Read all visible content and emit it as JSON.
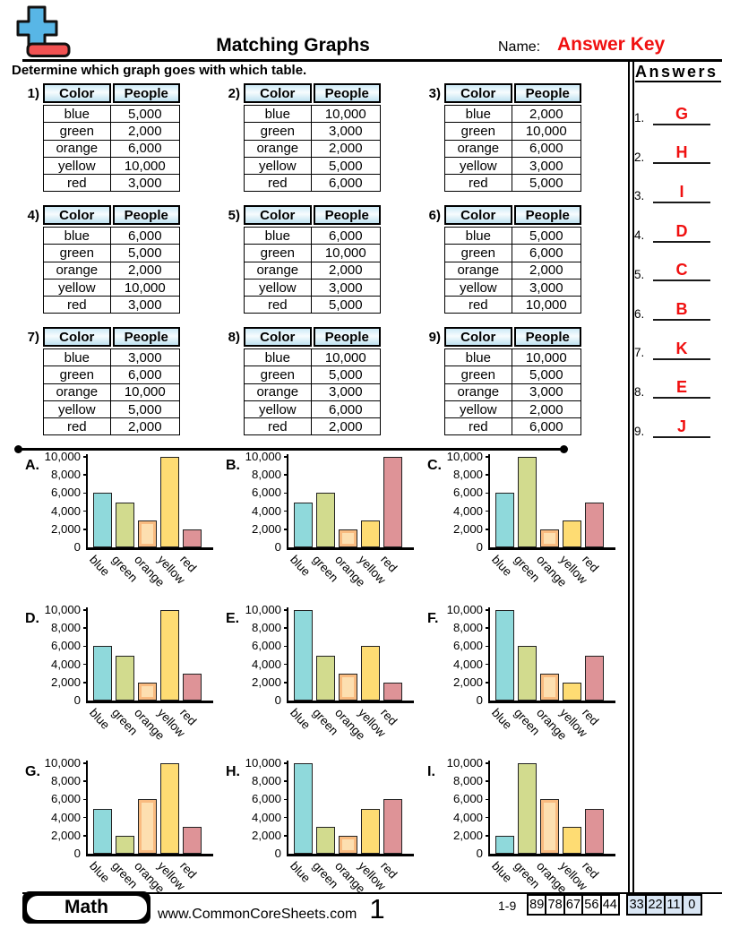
{
  "header": {
    "title": "Matching Graphs",
    "name_label": "Name:",
    "answer_key": "Answer Key",
    "accent_red": "#f01010"
  },
  "instruction": "Determine which graph goes with which table.",
  "tables": {
    "columns": [
      "Color",
      "People"
    ],
    "items": [
      {
        "num": "1)",
        "rows": [
          [
            "blue",
            "5,000"
          ],
          [
            "green",
            "2,000"
          ],
          [
            "orange",
            "6,000"
          ],
          [
            "yellow",
            "10,000"
          ],
          [
            "red",
            "3,000"
          ]
        ]
      },
      {
        "num": "2)",
        "rows": [
          [
            "blue",
            "10,000"
          ],
          [
            "green",
            "3,000"
          ],
          [
            "orange",
            "2,000"
          ],
          [
            "yellow",
            "5,000"
          ],
          [
            "red",
            "6,000"
          ]
        ]
      },
      {
        "num": "3)",
        "rows": [
          [
            "blue",
            "2,000"
          ],
          [
            "green",
            "10,000"
          ],
          [
            "orange",
            "6,000"
          ],
          [
            "yellow",
            "3,000"
          ],
          [
            "red",
            "5,000"
          ]
        ]
      },
      {
        "num": "4)",
        "rows": [
          [
            "blue",
            "6,000"
          ],
          [
            "green",
            "5,000"
          ],
          [
            "orange",
            "2,000"
          ],
          [
            "yellow",
            "10,000"
          ],
          [
            "red",
            "3,000"
          ]
        ]
      },
      {
        "num": "5)",
        "rows": [
          [
            "blue",
            "6,000"
          ],
          [
            "green",
            "10,000"
          ],
          [
            "orange",
            "2,000"
          ],
          [
            "yellow",
            "3,000"
          ],
          [
            "red",
            "5,000"
          ]
        ]
      },
      {
        "num": "6)",
        "rows": [
          [
            "blue",
            "5,000"
          ],
          [
            "green",
            "6,000"
          ],
          [
            "orange",
            "2,000"
          ],
          [
            "yellow",
            "3,000"
          ],
          [
            "red",
            "10,000"
          ]
        ]
      },
      {
        "num": "7)",
        "rows": [
          [
            "blue",
            "3,000"
          ],
          [
            "green",
            "6,000"
          ],
          [
            "orange",
            "10,000"
          ],
          [
            "yellow",
            "5,000"
          ],
          [
            "red",
            "2,000"
          ]
        ]
      },
      {
        "num": "8)",
        "rows": [
          [
            "blue",
            "10,000"
          ],
          [
            "green",
            "5,000"
          ],
          [
            "orange",
            "3,000"
          ],
          [
            "yellow",
            "6,000"
          ],
          [
            "red",
            "2,000"
          ]
        ]
      },
      {
        "num": "9)",
        "rows": [
          [
            "blue",
            "10,000"
          ],
          [
            "green",
            "5,000"
          ],
          [
            "orange",
            "3,000"
          ],
          [
            "yellow",
            "2,000"
          ],
          [
            "red",
            "6,000"
          ]
        ]
      }
    ]
  },
  "answers": {
    "title": "Answers",
    "items": [
      {
        "n": "1.",
        "letter": "G"
      },
      {
        "n": "2.",
        "letter": "H"
      },
      {
        "n": "3.",
        "letter": "I"
      },
      {
        "n": "4.",
        "letter": "D"
      },
      {
        "n": "5.",
        "letter": "C"
      },
      {
        "n": "6.",
        "letter": "B"
      },
      {
        "n": "7.",
        "letter": "K"
      },
      {
        "n": "8.",
        "letter": "E"
      },
      {
        "n": "9.",
        "letter": "J"
      }
    ]
  },
  "chart_data": {
    "type": "bar",
    "categories": [
      "blue",
      "green",
      "orange",
      "yellow",
      "red"
    ],
    "ylim": [
      0,
      10000
    ],
    "ytick_labels": [
      "10,000",
      "8,000",
      "6,000",
      "4,000",
      "2,000",
      "0"
    ],
    "grid": false,
    "bar_colors": {
      "blue": "#8FD9DB",
      "green": "#D2DB8E",
      "orange": "#FDDFB0",
      "orange_ring": "#F9BB80",
      "yellow": "#FEDC73",
      "red": "#DE9397"
    },
    "charts": [
      {
        "label": "A.",
        "values": [
          6000,
          5000,
          3000,
          10000,
          2000
        ]
      },
      {
        "label": "B.",
        "values": [
          5000,
          6000,
          2000,
          3000,
          10000
        ]
      },
      {
        "label": "C.",
        "values": [
          6000,
          10000,
          2000,
          3000,
          5000
        ]
      },
      {
        "label": "D.",
        "values": [
          6000,
          5000,
          2000,
          10000,
          3000
        ]
      },
      {
        "label": "E.",
        "values": [
          10000,
          5000,
          3000,
          6000,
          2000
        ]
      },
      {
        "label": "F.",
        "values": [
          10000,
          6000,
          3000,
          2000,
          5000
        ]
      },
      {
        "label": "G.",
        "values": [
          5000,
          2000,
          6000,
          10000,
          3000
        ]
      },
      {
        "label": "H.",
        "values": [
          10000,
          3000,
          2000,
          5000,
          6000
        ]
      },
      {
        "label": "I.",
        "values": [
          2000,
          10000,
          6000,
          3000,
          5000
        ]
      }
    ]
  },
  "footer": {
    "badge": "Math",
    "website": "www.CommonCoreSheets.com",
    "page_number": "1",
    "score_label": "1-9",
    "score_cells": [
      "89",
      "78",
      "67",
      "56",
      "44",
      "33",
      "22",
      "11",
      "0"
    ],
    "score_highlight_from": 5,
    "score_highlight_color": "#d9e6f4"
  }
}
